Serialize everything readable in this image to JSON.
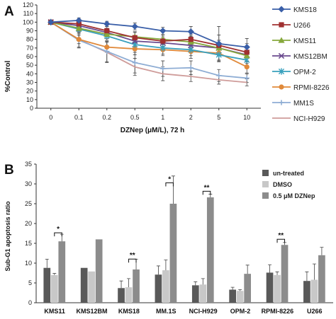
{
  "chart_data": [
    {
      "panel_label": "A",
      "type": "line",
      "categories": [
        "0",
        "0.1",
        "0.2",
        "0.5",
        "1",
        "2",
        "5",
        "10"
      ],
      "xlabel": "DZNep (μM/L), 72 h",
      "ylabel": "%Control",
      "ylim": [
        0,
        120
      ],
      "yticks": [
        0,
        10,
        20,
        30,
        40,
        50,
        60,
        70,
        80,
        90,
        100,
        110,
        120
      ],
      "legend_position": "right",
      "grid": false,
      "series": [
        {
          "name": "KMS18",
          "color": "#3a5fa8",
          "marker": "diamond",
          "values": [
            100,
            102,
            98,
            95,
            90,
            89,
            75,
            71
          ],
          "errors": [
            0,
            3,
            3,
            4,
            4,
            6,
            20,
            10
          ]
        },
        {
          "name": "U266",
          "color": "#a03030",
          "marker": "square",
          "values": [
            100,
            98,
            90,
            82,
            78,
            80,
            73,
            65
          ],
          "errors": [
            0,
            3,
            5,
            6,
            6,
            6,
            12,
            10
          ]
        },
        {
          "name": "KMS11",
          "color": "#86a83c",
          "marker": "triangle",
          "values": [
            100,
            93,
            86,
            83,
            80,
            77,
            70,
            61
          ],
          "errors": [
            0,
            4,
            5,
            6,
            6,
            7,
            9,
            9
          ]
        },
        {
          "name": "KMS12BM",
          "color": "#6a4a8e",
          "marker": "x",
          "values": [
            100,
            96,
            88,
            78,
            76,
            73,
            70,
            62
          ],
          "errors": [
            0,
            3,
            5,
            6,
            6,
            7,
            9,
            8
          ]
        },
        {
          "name": "OPM-2",
          "color": "#38a0bd",
          "marker": "star",
          "values": [
            100,
            92,
            84,
            74,
            70,
            68,
            62,
            56
          ],
          "errors": [
            0,
            4,
            5,
            6,
            7,
            7,
            8,
            8
          ]
        },
        {
          "name": "RPMI-8226",
          "color": "#e0893a",
          "marker": "circle",
          "values": [
            100,
            80,
            71,
            69,
            68,
            66,
            64,
            48
          ],
          "errors": [
            0,
            5,
            6,
            7,
            7,
            8,
            8,
            7
          ]
        },
        {
          "name": "MM1S",
          "color": "#8eadd4",
          "marker": "plus",
          "values": [
            100,
            79,
            66,
            53,
            46,
            47,
            38,
            35
          ],
          "errors": [
            0,
            8,
            12,
            12,
            9,
            8,
            7,
            5
          ]
        },
        {
          "name": "NCI-H929",
          "color": "#cf9c9a",
          "marker": "none",
          "values": [
            100,
            80,
            65,
            48,
            40,
            37,
            33,
            30
          ],
          "errors": [
            0,
            10,
            12,
            10,
            8,
            6,
            5,
            4
          ]
        }
      ]
    },
    {
      "panel_label": "B",
      "type": "bar",
      "categories": [
        "KMS11",
        "KMS12BM",
        "KMS18",
        "MM.1S",
        "NCI-H929",
        "OPM-2",
        "RPMI-8226",
        "U266"
      ],
      "ylabel": "Sub-G1 apoptosis ratio",
      "ylim": [
        0,
        35
      ],
      "yticks": [
        0,
        5,
        10,
        15,
        20,
        25,
        30,
        35
      ],
      "legend_position": "top-right",
      "grid": false,
      "series": [
        {
          "name": "un-treated",
          "color": "#595959",
          "values": [
            8.8,
            8.8,
            3.7,
            7.1,
            4.4,
            3.3,
            7.6,
            5.5
          ],
          "errors": [
            2.2,
            0,
            1.8,
            2.2,
            0.9,
            0.6,
            2.0,
            2.3
          ]
        },
        {
          "name": "DMSO",
          "color": "#c8c8c8",
          "values": [
            7.0,
            7.9,
            3.9,
            8.2,
            4.6,
            3.0,
            7.0,
            5.8
          ],
          "errors": [
            0.4,
            0,
            2.2,
            2.6,
            1.5,
            0.3,
            0.8,
            4.0
          ]
        },
        {
          "name": "0.5 μM DZNep",
          "color": "#8c8c8c",
          "values": [
            15.5,
            16.0,
            8.4,
            25.0,
            26.6,
            7.3,
            14.6,
            12.0
          ],
          "errors": [
            1.8,
            0,
            2.6,
            7.0,
            0.8,
            2.2,
            0.6,
            2.0
          ]
        }
      ],
      "significance": [
        {
          "category_index": 0,
          "label": "*"
        },
        {
          "category_index": 2,
          "label": "**"
        },
        {
          "category_index": 3,
          "label": "*"
        },
        {
          "category_index": 4,
          "label": "**"
        },
        {
          "category_index": 6,
          "label": "**"
        }
      ]
    }
  ]
}
